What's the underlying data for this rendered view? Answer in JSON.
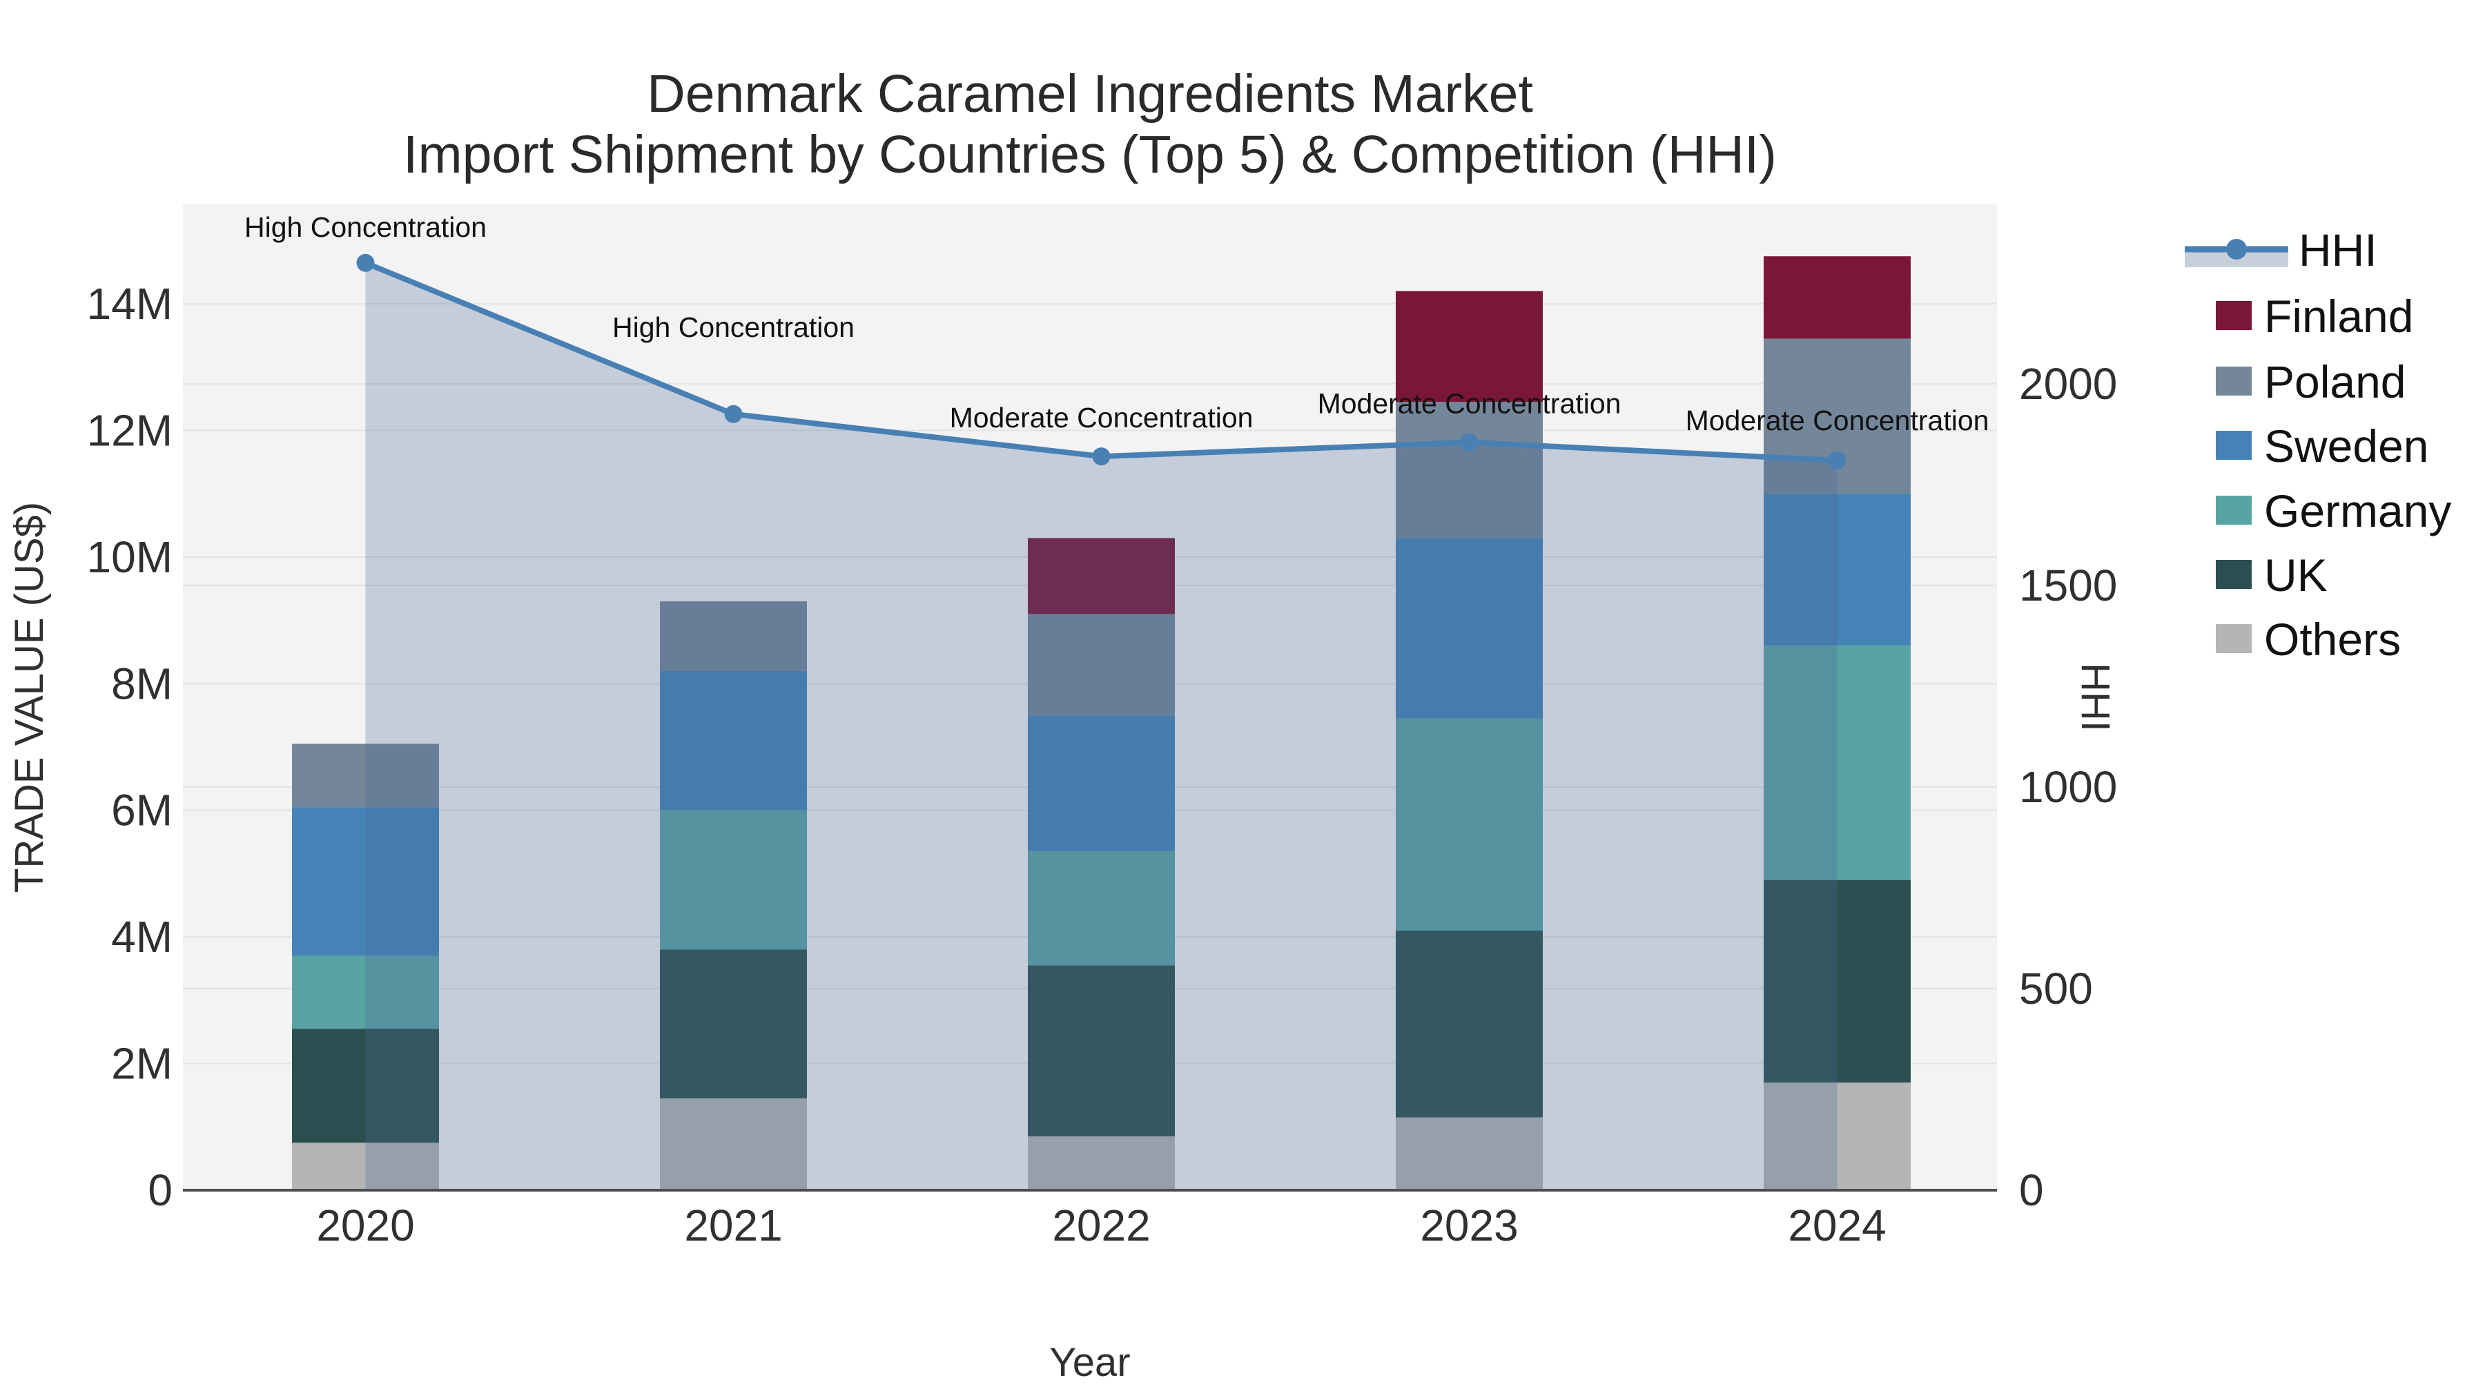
{
  "title": {
    "line1": "Denmark Caramel Ingredients Market",
    "line2": "Import Shipment by Countries (Top 5) & Competition (HHI)"
  },
  "axes": {
    "left": {
      "title": "TRADE VALUE (US$)",
      "ticks": [
        {
          "label": "0",
          "value": 0
        },
        {
          "label": "2M",
          "value": 2000000
        },
        {
          "label": "4M",
          "value": 4000000
        },
        {
          "label": "6M",
          "value": 6000000
        },
        {
          "label": "8M",
          "value": 8000000
        },
        {
          "label": "10M",
          "value": 10000000
        },
        {
          "label": "12M",
          "value": 12000000
        },
        {
          "label": "14M",
          "value": 14000000
        }
      ]
    },
    "right": {
      "title": "HHI",
      "ticks": [
        {
          "label": "0",
          "value": 0
        },
        {
          "label": "500",
          "value": 500
        },
        {
          "label": "1000",
          "value": 1000
        },
        {
          "label": "1500",
          "value": 1500
        },
        {
          "label": "2000",
          "value": 2000
        }
      ]
    },
    "x": {
      "title": "Year"
    }
  },
  "legend": {
    "items": [
      {
        "label": "HHI",
        "type": "line",
        "color": "#4880B4",
        "band": "#c7cfdb"
      },
      {
        "label": "Finland",
        "type": "box",
        "color": "#7A1638"
      },
      {
        "label": "Poland",
        "type": "box",
        "color": "#74869A"
      },
      {
        "label": "Sweden",
        "type": "box",
        "color": "#4583B7"
      },
      {
        "label": "Germany",
        "type": "box",
        "color": "#58A3A4"
      },
      {
        "label": "UK",
        "type": "box",
        "color": "#2B4F50"
      },
      {
        "label": "Others",
        "type": "box",
        "color": "#B3B5B6"
      }
    ]
  },
  "colors": {
    "hhi_line": "#4880B4",
    "hhi_area": "rgba(74,106,148,0.28)",
    "plot_background": "#f3f3f4",
    "gridline": "#e2e4e7",
    "axis_line": "#4d4d4d"
  },
  "chart_data": {
    "type": "bar",
    "subtype": "stacked-bars-with-line-overlay",
    "title": "Denmark Caramel Ingredients Market — Import Shipment by Countries (Top 5) & Competition (HHI)",
    "categories": [
      "2020",
      "2021",
      "2022",
      "2023",
      "2024"
    ],
    "xlabel": "Year",
    "ylabel_left": "TRADE VALUE (US$)",
    "ylabel_right": "HHI",
    "ylim_left": [
      0,
      15580000
    ],
    "ylim_right": [
      0,
      2447
    ],
    "grid": true,
    "legend_position": "right-top",
    "series": [
      {
        "name": "Others",
        "color": "#B3B5B6",
        "values": [
          750000,
          1450000,
          850000,
          1150000,
          1700000
        ]
      },
      {
        "name": "UK",
        "color": "#2B4F50",
        "values": [
          1800000,
          2350000,
          2700000,
          2950000,
          3200000
        ]
      },
      {
        "name": "Germany",
        "color": "#58A3A4",
        "values": [
          1150000,
          2200000,
          1800000,
          3350000,
          3700000
        ]
      },
      {
        "name": "Sweden",
        "color": "#4583B7",
        "values": [
          2350000,
          2200000,
          2150000,
          2850000,
          2400000
        ]
      },
      {
        "name": "Poland",
        "color": "#74869A",
        "values": [
          1000000,
          1100000,
          1600000,
          2150000,
          2450000
        ]
      },
      {
        "name": "Finland",
        "color": "#7A1638",
        "values": [
          0,
          0,
          1200000,
          1750000,
          1300000
        ]
      }
    ],
    "bar_totals": [
      7050000,
      9300000,
      10300000,
      14200000,
      14750000
    ],
    "line_series": {
      "name": "HHI",
      "axis": "right",
      "values": [
        2300,
        1925,
        1820,
        1855,
        1810
      ],
      "fill": "tozeroy"
    },
    "annotations": [
      {
        "x": "2020",
        "text": "High Concentration"
      },
      {
        "x": "2021",
        "text": "High Concentration"
      },
      {
        "x": "2022",
        "text": "Moderate Concentration"
      },
      {
        "x": "2023",
        "text": "Moderate Concentration"
      },
      {
        "x": "2024",
        "text": "Moderate Concentration"
      }
    ]
  }
}
